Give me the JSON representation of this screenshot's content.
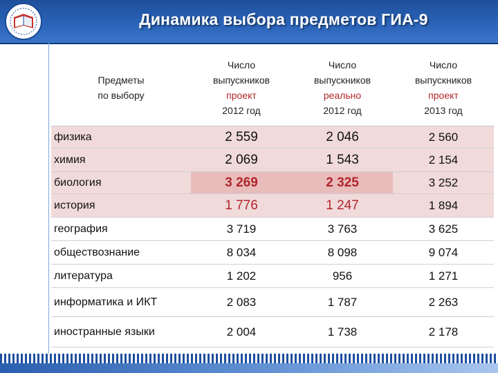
{
  "title": "Динамика выбора предметов ГИА-9",
  "colors": {
    "header_blue": "#2a63b8",
    "highlight_pink": "#f1dada",
    "strong_pink": "#e9bcbc",
    "accent_red": "#b0252a"
  },
  "logo": {
    "icon": "book-emblem-icon"
  },
  "table": {
    "headers": [
      {
        "lines": [
          "Предметы",
          "по выбору"
        ]
      },
      {
        "lines": [
          "Число",
          "выпускников",
          "проект",
          "2012 год"
        ]
      },
      {
        "lines": [
          "Число",
          "выпускников",
          "реально",
          "2012 год"
        ]
      },
      {
        "lines": [
          "Число",
          "выпускников",
          "проект",
          "2013 год"
        ]
      }
    ],
    "rows": [
      {
        "subject": "физика",
        "v1": "2 559",
        "v2": "2 046",
        "v3": "2 560"
      },
      {
        "subject": "химия",
        "v1": "2 069",
        "v2": "1 543",
        "v3": "2 154"
      },
      {
        "subject": "биология",
        "v1": "3 269",
        "v2": "2 325",
        "v3": "3 252"
      },
      {
        "subject": "история",
        "v1": "1 776",
        "v2": "1 247",
        "v3": "1 894"
      },
      {
        "subject": "география",
        "v1": "3 719",
        "v2": "3 763",
        "v3": "3 625"
      },
      {
        "subject": "обществознание",
        "v1": "8 034",
        "v2": "8 098",
        "v3": "9 074"
      },
      {
        "subject": "литература",
        "v1": "1 202",
        "v2": "956",
        "v3": "1 271"
      },
      {
        "subject": "информатика и ИКТ",
        "v1": "2 083",
        "v2": "1 787",
        "v3": "2 263"
      },
      {
        "subject": "иностранные языки",
        "v1": "2 004",
        "v2": "1 738",
        "v3": "2 178"
      }
    ]
  }
}
